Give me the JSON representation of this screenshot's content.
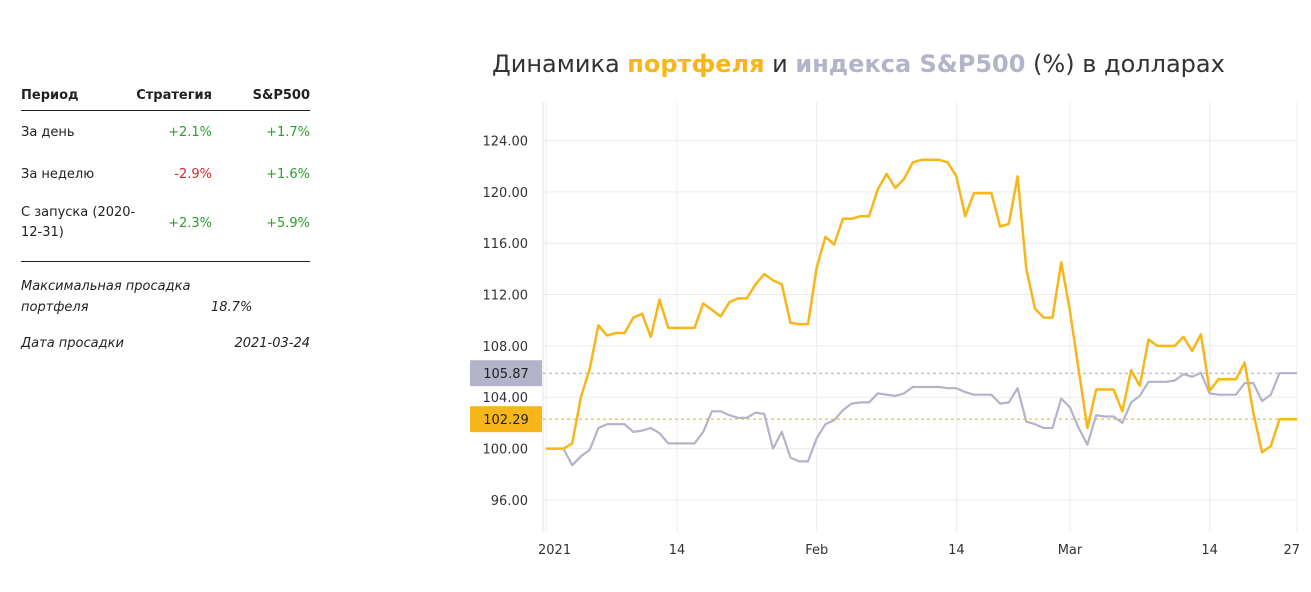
{
  "table": {
    "headers": [
      "Период",
      "Стратегия",
      "S&P500"
    ],
    "rows": [
      {
        "label": "За день",
        "strategy": "+2.1%",
        "sp500": "+1.7%"
      },
      {
        "label": "За неделю",
        "strategy": "-2.9%",
        "sp500": "+1.6%"
      },
      {
        "label": "С запуска (2020-12-31)",
        "strategy": "+2.3%",
        "sp500": "+5.9%"
      }
    ],
    "drawdown_label": "Максимальная просадка портфеля",
    "drawdown_value": "18.7%",
    "drawdown_date_label": "Дата просадки",
    "drawdown_date_value": "2021-03-24"
  },
  "title": {
    "part1": "Динамика ",
    "part2": "портфеля",
    "part3": " и ",
    "part4": "индекса S&P500",
    "part5": " (%) в долларах"
  },
  "colors": {
    "portfolio": "#f7b61a",
    "index": "#b3b3c9",
    "positive": "#2aa12a",
    "negative": "#d42a2a"
  },
  "chart_data": {
    "type": "line",
    "x_tick_labels": [
      "2021",
      "14",
      "Feb",
      "14",
      "Mar",
      "14",
      "27"
    ],
    "y_tick_labels": [
      "96.00",
      "100.00",
      "104.00",
      "108.00",
      "112.00",
      "116.00",
      "120.00",
      "124.00"
    ],
    "ylim": [
      93.5,
      127
    ],
    "grid": true,
    "series": [
      {
        "name": "портфеля",
        "last_value_label": "102.29",
        "values": [
          100.0,
          100.0,
          100.0,
          100.4,
          104.0,
          106.2,
          109.6,
          108.8,
          109.0,
          109.0,
          110.2,
          110.5,
          108.7,
          111.6,
          109.4,
          109.4,
          109.4,
          109.4,
          111.3,
          110.8,
          110.3,
          111.4,
          111.7,
          111.7,
          112.8,
          113.6,
          113.1,
          112.8,
          109.8,
          109.7,
          109.7,
          114.1,
          116.5,
          115.9,
          117.9,
          117.9,
          118.1,
          118.1,
          120.2,
          121.4,
          120.3,
          121.0,
          122.3,
          122.5,
          122.5,
          122.5,
          122.3,
          121.2,
          118.1,
          119.9,
          119.9,
          119.9,
          117.3,
          117.5,
          121.2,
          114.0,
          110.9,
          110.2,
          110.2,
          114.5,
          110.7,
          106.1,
          101.6,
          104.6,
          104.6,
          104.6,
          102.9,
          106.1,
          104.9,
          108.5,
          108.0,
          108.0,
          108.0,
          108.7,
          107.6,
          108.9,
          104.5,
          105.4,
          105.4,
          105.4,
          106.7,
          102.8,
          99.7,
          100.2,
          102.29,
          102.29,
          102.29
        ]
      },
      {
        "name": "индекса S&P500",
        "last_value_label": "105.87",
        "values": [
          100.0,
          100.0,
          100.0,
          98.7,
          99.4,
          99.9,
          101.6,
          101.9,
          101.9,
          101.9,
          101.3,
          101.4,
          101.6,
          101.2,
          100.4,
          100.4,
          100.4,
          100.4,
          101.3,
          102.9,
          102.9,
          102.6,
          102.4,
          102.4,
          102.8,
          102.7,
          100.0,
          101.3,
          99.3,
          99.0,
          99.0,
          100.8,
          101.9,
          102.2,
          103.0,
          103.5,
          103.6,
          103.6,
          104.3,
          104.2,
          104.1,
          104.3,
          104.8,
          104.8,
          104.8,
          104.8,
          104.7,
          104.7,
          104.4,
          104.2,
          104.2,
          104.2,
          103.5,
          103.6,
          104.7,
          102.1,
          101.9,
          101.6,
          101.6,
          103.9,
          103.2,
          101.6,
          100.3,
          102.6,
          102.5,
          102.5,
          102.0,
          103.6,
          104.1,
          105.2,
          105.2,
          105.2,
          105.3,
          105.8,
          105.6,
          105.9,
          104.3,
          104.2,
          104.2,
          104.2,
          105.1,
          105.1,
          103.7,
          104.2,
          105.87,
          105.87,
          105.87
        ]
      }
    ]
  }
}
